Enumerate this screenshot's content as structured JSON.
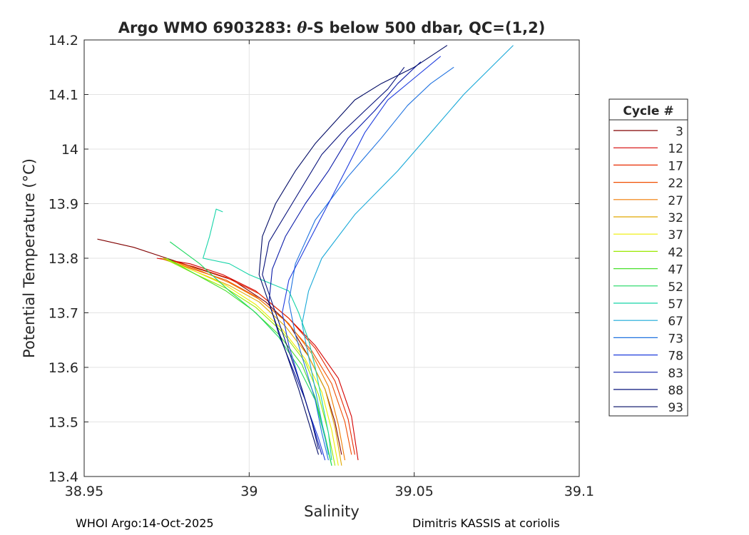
{
  "chart_data": {
    "type": "line",
    "title_prefix": "Argo WMO 6903283: ",
    "title_theta": "θ",
    "title_suffix": "-S below 500 dbar,  QC=(1,2)",
    "xlabel": "Salinity",
    "ylabel": "Potential Temperature (°C)",
    "xlim": [
      38.95,
      39.1
    ],
    "ylim": [
      13.4,
      14.2
    ],
    "xticks": [
      38.95,
      39.0,
      39.05,
      39.1
    ],
    "xtick_labels": [
      "38.95",
      "39",
      "39.05",
      "39.1"
    ],
    "yticks": [
      13.4,
      13.5,
      13.6,
      13.7,
      13.8,
      13.9,
      14.0,
      14.1,
      14.2
    ],
    "ytick_labels": [
      "13.4",
      "13.5",
      "13.6",
      "13.7",
      "13.8",
      "13.9",
      "14",
      "14.1",
      "14.2"
    ],
    "grid": true,
    "legend_title": "Cycle #",
    "legend_position": "right",
    "series": [
      {
        "name": "3",
        "color": "#800000",
        "x": [
          38.954,
          38.965,
          38.975,
          38.985,
          38.995,
          39.005,
          39.012,
          39.018,
          39.023,
          39.026,
          39.028
        ],
        "y": [
          13.835,
          13.82,
          13.8,
          13.78,
          13.76,
          13.72,
          13.68,
          13.62,
          13.56,
          13.5,
          13.44
        ]
      },
      {
        "name": "12",
        "color": "#d40000",
        "x": [
          38.972,
          38.982,
          38.992,
          39.002,
          39.012,
          39.02,
          39.027,
          39.031,
          39.033
        ],
        "y": [
          13.8,
          13.79,
          13.77,
          13.74,
          13.69,
          13.64,
          13.58,
          13.51,
          13.43
        ]
      },
      {
        "name": "17",
        "color": "#e82a00",
        "x": [
          38.973,
          38.983,
          38.993,
          39.003,
          39.012,
          39.02,
          39.026,
          39.03,
          39.032
        ],
        "y": [
          13.8,
          13.785,
          13.765,
          13.735,
          13.69,
          13.635,
          13.575,
          13.505,
          13.44
        ]
      },
      {
        "name": "22",
        "color": "#f04e00",
        "x": [
          38.973,
          38.983,
          38.993,
          39.002,
          39.011,
          39.019,
          39.025,
          39.029,
          39.031
        ],
        "y": [
          13.8,
          13.78,
          13.76,
          13.73,
          13.685,
          13.63,
          13.57,
          13.5,
          13.44
        ]
      },
      {
        "name": "27",
        "color": "#f07a00",
        "x": [
          38.974,
          38.984,
          38.994,
          39.003,
          39.012,
          39.019,
          39.024,
          39.027,
          39.029
        ],
        "y": [
          13.8,
          13.78,
          13.755,
          13.725,
          13.68,
          13.625,
          13.565,
          13.495,
          13.43
        ]
      },
      {
        "name": "32",
        "color": "#e0a800",
        "x": [
          38.974,
          38.984,
          38.994,
          39.003,
          39.011,
          39.018,
          39.023,
          39.026,
          39.028
        ],
        "y": [
          13.8,
          13.775,
          13.75,
          13.72,
          13.675,
          13.62,
          13.56,
          13.49,
          13.42
        ]
      },
      {
        "name": "37",
        "color": "#eeee00",
        "x": [
          38.974,
          38.984,
          38.993,
          39.002,
          39.01,
          39.017,
          39.022,
          39.025,
          39.027
        ],
        "y": [
          13.8,
          13.775,
          13.75,
          13.715,
          13.67,
          13.615,
          13.555,
          13.485,
          13.42
        ]
      },
      {
        "name": "42",
        "color": "#9ae800",
        "x": [
          38.974,
          38.984,
          38.993,
          39.002,
          39.01,
          39.017,
          39.021,
          39.024,
          39.026
        ],
        "y": [
          13.8,
          13.77,
          13.745,
          13.71,
          13.665,
          13.61,
          13.55,
          13.48,
          13.42
        ]
      },
      {
        "name": "47",
        "color": "#48e02c",
        "x": [
          38.975,
          38.984,
          38.993,
          39.001,
          39.009,
          39.016,
          39.02,
          39.023,
          39.025
        ],
        "y": [
          13.8,
          13.77,
          13.74,
          13.705,
          13.66,
          13.605,
          13.545,
          13.475,
          13.42
        ]
      },
      {
        "name": "52",
        "color": "#1ed860",
        "x": [
          38.976,
          38.985,
          38.994,
          39.002,
          39.009,
          39.015,
          39.02,
          39.023,
          39.025
        ],
        "y": [
          13.83,
          13.79,
          13.74,
          13.7,
          13.655,
          13.6,
          13.54,
          13.47,
          13.42
        ]
      },
      {
        "name": "57",
        "color": "#15d4a8",
        "x": [
          38.992,
          38.99,
          38.988,
          38.986,
          38.994,
          39.0,
          39.012,
          39.015,
          39.018,
          39.02,
          39.022,
          39.024,
          39.025
        ],
        "y": [
          13.885,
          13.89,
          13.84,
          13.8,
          13.79,
          13.77,
          13.74,
          13.7,
          13.65,
          13.6,
          13.54,
          13.48,
          13.43
        ]
      },
      {
        "name": "67",
        "color": "#18a8d8",
        "x": [
          39.08,
          39.075,
          39.065,
          39.055,
          39.045,
          39.032,
          39.022,
          39.018,
          39.016,
          39.018,
          39.02,
          39.022,
          39.024
        ],
        "y": [
          14.19,
          14.16,
          14.1,
          14.03,
          13.96,
          13.88,
          13.8,
          13.74,
          13.68,
          13.62,
          13.56,
          13.5,
          13.44
        ]
      },
      {
        "name": "73",
        "color": "#1f72e0",
        "x": [
          39.062,
          39.055,
          39.048,
          39.04,
          39.03,
          39.02,
          39.014,
          39.012,
          39.014,
          39.017,
          39.02,
          39.022,
          39.024
        ],
        "y": [
          14.15,
          14.12,
          14.08,
          14.02,
          13.95,
          13.87,
          13.79,
          13.72,
          13.66,
          13.6,
          13.54,
          13.48,
          13.43
        ]
      },
      {
        "name": "78",
        "color": "#1e3cde",
        "x": [
          39.058,
          39.05,
          39.042,
          39.035,
          39.03,
          39.024,
          39.018,
          39.012,
          39.01,
          39.012,
          39.015,
          39.018,
          39.021,
          39.023
        ],
        "y": [
          14.17,
          14.13,
          14.09,
          14.03,
          13.97,
          13.9,
          13.83,
          13.76,
          13.7,
          13.64,
          13.58,
          13.52,
          13.47,
          13.43
        ]
      },
      {
        "name": "83",
        "color": "#0a1aa8",
        "x": [
          39.052,
          39.045,
          39.038,
          39.03,
          39.024,
          39.017,
          39.011,
          39.007,
          39.006,
          39.009,
          39.013,
          39.017,
          39.02,
          39.022
        ],
        "y": [
          14.16,
          14.12,
          14.07,
          14.02,
          13.96,
          13.9,
          13.84,
          13.78,
          13.72,
          13.66,
          13.6,
          13.54,
          13.48,
          13.44
        ]
      },
      {
        "name": "88",
        "color": "#06107a",
        "x": [
          39.047,
          39.042,
          39.035,
          39.028,
          39.022,
          39.017,
          39.012,
          39.006,
          39.004,
          39.008,
          39.012,
          39.016,
          39.019,
          39.021
        ],
        "y": [
          14.15,
          14.11,
          14.07,
          14.03,
          13.99,
          13.94,
          13.89,
          13.83,
          13.77,
          13.7,
          13.63,
          13.56,
          13.5,
          13.45
        ]
      },
      {
        "name": "93",
        "color": "#000a64",
        "x": [
          39.06,
          39.05,
          39.04,
          39.032,
          39.026,
          39.02,
          39.014,
          39.008,
          39.004,
          39.003,
          39.007,
          39.011,
          39.015,
          39.018,
          39.021
        ],
        "y": [
          14.19,
          14.15,
          14.12,
          14.09,
          14.05,
          14.01,
          13.96,
          13.9,
          13.84,
          13.77,
          13.7,
          13.63,
          13.56,
          13.5,
          13.44
        ]
      }
    ]
  },
  "footer": {
    "left": "WHOI Argo:14-Oct-2025",
    "right": "Dimitris KASSIS at coriolis"
  }
}
